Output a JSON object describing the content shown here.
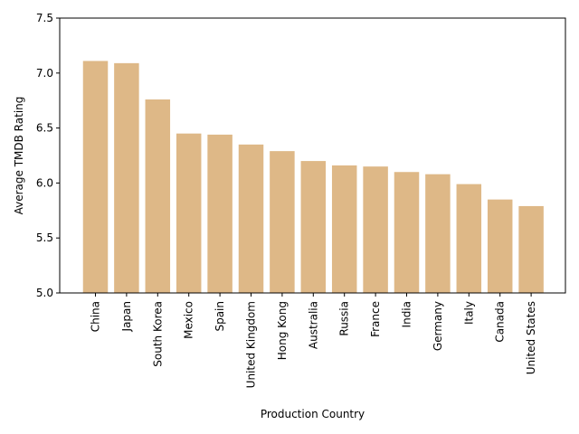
{
  "chart_data": {
    "type": "bar",
    "categories": [
      "China",
      "Japan",
      "South Korea",
      "Mexico",
      "Spain",
      "United Kingdom",
      "Hong Kong",
      "Australia",
      "Russia",
      "France",
      "India",
      "Germany",
      "Italy",
      "Canada",
      "United States"
    ],
    "values": [
      7.11,
      7.09,
      6.76,
      6.45,
      6.44,
      6.35,
      6.29,
      6.2,
      6.16,
      6.15,
      6.1,
      6.08,
      5.99,
      5.85,
      5.79
    ],
    "title": "",
    "xlabel": "Production Country",
    "ylabel": "Average TMDB Rating",
    "ylim": [
      5.0,
      7.5
    ],
    "yticks": [
      "5.0",
      "5.5",
      "6.0",
      "6.5",
      "7.0",
      "7.5"
    ],
    "grid": false,
    "bar_color": "#deb887"
  }
}
